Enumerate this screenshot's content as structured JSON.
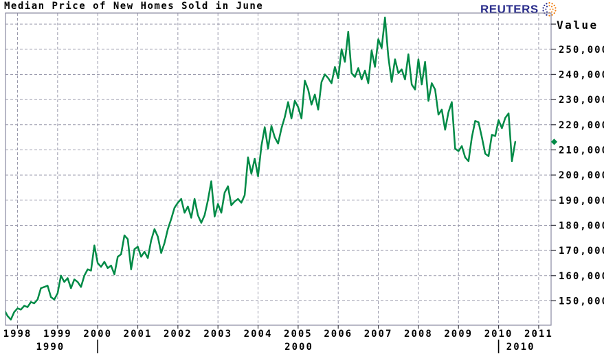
{
  "header": {
    "title": "Median Price of New Homes Sold in June",
    "brand_text": "REUTERS"
  },
  "colors": {
    "line_green": "#008a46",
    "marker_green": "#008a46",
    "brand_navy": "#2b2e8c",
    "brand_orange": "#f07f13",
    "grid_gray": "#9a9aac",
    "axis_border": "#8888a0",
    "tick_dark": "#3a3a44",
    "text_black": "#000000",
    "background": "#ffffff"
  },
  "chart_data": {
    "type": "line",
    "title": "Median Price of New Homes Sold in June",
    "xlabel": "",
    "ylabel": "Value",
    "legend": [],
    "grid": true,
    "frequency": "monthly",
    "series_start": "1997-09",
    "series_name": "Median price of new homes sold (USD)",
    "values": [
      146500,
      144000,
      142500,
      145500,
      147000,
      146500,
      148000,
      147500,
      149500,
      149000,
      150500,
      155000,
      155500,
      156000,
      151500,
      150500,
      153000,
      160000,
      157500,
      159000,
      155000,
      158500,
      157500,
      155500,
      160000,
      162500,
      162000,
      172000,
      165000,
      163500,
      165500,
      163000,
      164000,
      160500,
      167500,
      168500,
      176000,
      174500,
      162500,
      170500,
      171500,
      167500,
      169500,
      167000,
      174000,
      178500,
      175500,
      169000,
      173000,
      178500,
      182500,
      187000,
      189000,
      190500,
      185000,
      187500,
      183000,
      190500,
      184000,
      181000,
      184000,
      190000,
      197500,
      183500,
      188500,
      185000,
      193000,
      195500,
      188000,
      189500,
      190500,
      189000,
      192000,
      207000,
      200500,
      206500,
      199500,
      211500,
      219000,
      210500,
      219500,
      215000,
      212500,
      218500,
      223000,
      229000,
      222500,
      229500,
      227000,
      222500,
      237500,
      234000,
      228000,
      232000,
      226000,
      237000,
      240000,
      238500,
      236500,
      243000,
      238500,
      250000,
      245000,
      257000,
      240500,
      239000,
      242500,
      238000,
      241500,
      236500,
      249500,
      243000,
      254000,
      250500,
      262600,
      247000,
      237000,
      246000,
      240500,
      242000,
      238000,
      248000,
      236000,
      234000,
      246000,
      236000,
      245000,
      229500,
      236500,
      234000,
      224000,
      226000,
      218000,
      225000,
      229000,
      210500,
      209500,
      211500,
      207000,
      205500,
      215000,
      221500,
      221000,
      215000,
      208500,
      207500,
      216000,
      215500,
      221800,
      218600,
      222700,
      224500,
      205500,
      213200
    ],
    "last_value_marker": 213200,
    "x_tick_years": [
      1998,
      1999,
      2000,
      2001,
      2002,
      2003,
      2004,
      2005,
      2006,
      2007,
      2008,
      2009,
      2010,
      2011
    ],
    "decade_labels": [
      {
        "text": "1990",
        "at_year": 1998.82
      },
      {
        "text": "2000",
        "at_year": 2005.02
      },
      {
        "text": "2010",
        "at_year": 2010.55
      }
    ],
    "decade_separators_at_years": [
      2000,
      2010
    ],
    "y_ticks": [
      {
        "value": 150000,
        "label": "150,000"
      },
      {
        "value": 160000,
        "label": "160,000"
      },
      {
        "value": 170000,
        "label": "170,000"
      },
      {
        "value": 180000,
        "label": "180,000"
      },
      {
        "value": 190000,
        "label": "190,000"
      },
      {
        "value": 200000,
        "label": "200,000"
      },
      {
        "value": 210000,
        "label": "210,000"
      },
      {
        "value": 220000,
        "label": "220,000"
      },
      {
        "value": 230000,
        "label": "230,000"
      },
      {
        "value": 240000,
        "label": "240,000"
      },
      {
        "value": 250000,
        "label": "250,000"
      }
    ],
    "y_grid_step": 10000,
    "y_grid_top_value": 260000,
    "x_range_years": [
      1997.7,
      2011.31
    ],
    "y_range": [
      140300,
      264400
    ]
  }
}
